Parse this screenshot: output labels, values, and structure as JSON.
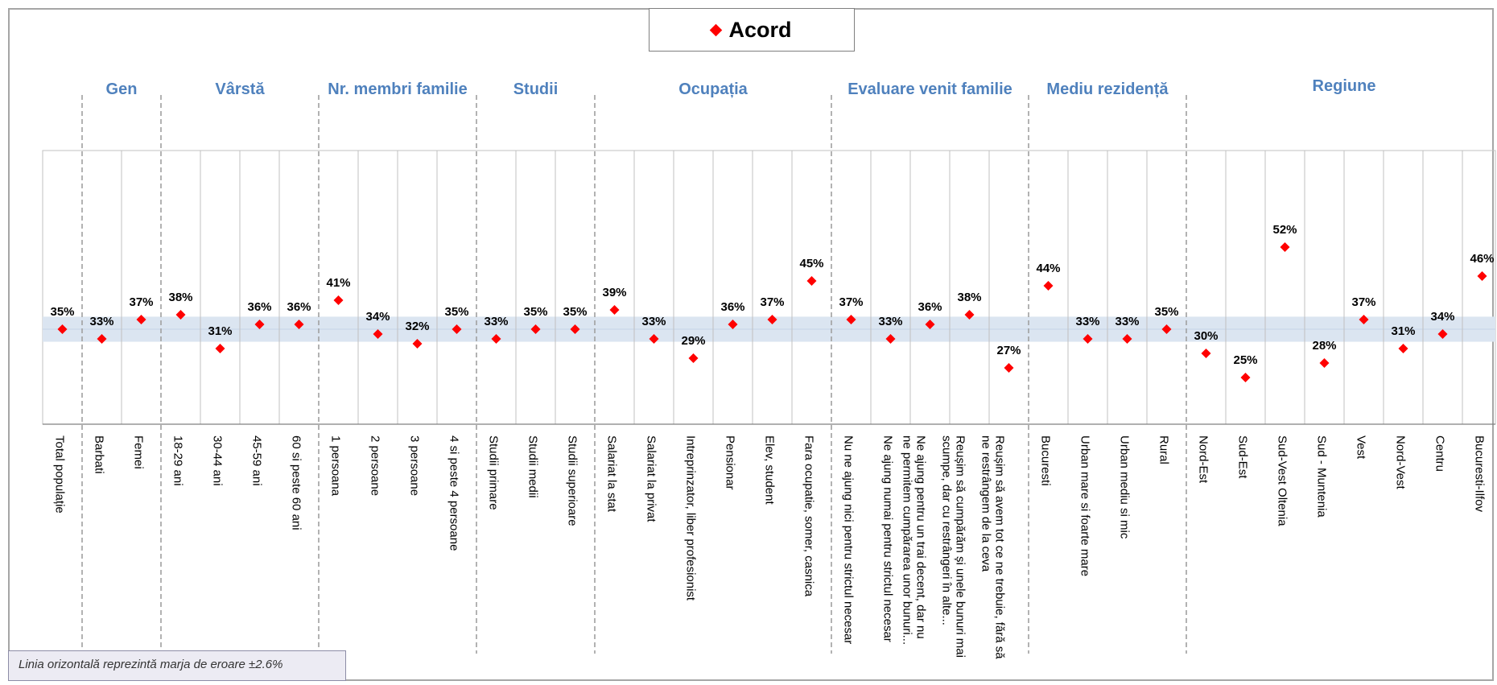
{
  "chart_data": {
    "type": "scatter",
    "legend": {
      "label": "Acord",
      "color": "#ff0000",
      "position": "top-center"
    },
    "note": "Linia orizontală reprezintă marja de eroare ±2.6%",
    "band": {
      "center": 35,
      "margin": 2.6
    },
    "groups": [
      {
        "label": "",
        "start": 0,
        "end": 0
      },
      {
        "label": "Gen",
        "start": 1,
        "end": 2
      },
      {
        "label": "Vârstă",
        "start": 3,
        "end": 6
      },
      {
        "label": "Nr. membri  familie",
        "start": 7,
        "end": 10
      },
      {
        "label": "Studii",
        "start": 11,
        "end": 13
      },
      {
        "label": "Ocupația",
        "start": 14,
        "end": 19
      },
      {
        "label": "Evaluare venit familie",
        "start": 20,
        "end": 24
      },
      {
        "label": "Mediu rezidență",
        "start": 25,
        "end": 28
      },
      {
        "label": "Regiune",
        "start": 29,
        "end": 36
      }
    ],
    "categories": [
      [
        "Total populație"
      ],
      [
        "Barbati"
      ],
      [
        "Femei"
      ],
      [
        "18-29 ani"
      ],
      [
        "30-44 ani"
      ],
      [
        "45-59 ani"
      ],
      [
        "60 si peste 60 ani"
      ],
      [
        "1 persoana"
      ],
      [
        "2 persoane"
      ],
      [
        "3 persoane"
      ],
      [
        "4 si peste 4 persoane"
      ],
      [
        "Studii primare"
      ],
      [
        "Studii medii"
      ],
      [
        "Studii superioare"
      ],
      [
        "Salariat la stat"
      ],
      [
        "Salariat la privat"
      ],
      [
        "Intreprinzator, liber profesionist"
      ],
      [
        "Pensionar"
      ],
      [
        "Elev, student"
      ],
      [
        "Fara ocupatie, somer, casnica"
      ],
      [
        "Nu ne ajung nici pentru strictul necesar"
      ],
      [
        "Ne ajung numai pentru strictul necesar"
      ],
      [
        "Ne ajung pentru un trai decent, dar nu",
        "ne permitem cumpărarea unor bunuri..."
      ],
      [
        "Reușim să cumpărăm și unele bunuri mai",
        "scumpe, dar cu restrângeri în alte..."
      ],
      [
        "Reușim să avem tot ce ne trebuie, fără să",
        "ne restrângem de la ceva"
      ],
      [
        "Bucuresti"
      ],
      [
        "Urban mare si foarte mare"
      ],
      [
        "Urban mediu si mic"
      ],
      [
        "Rural"
      ],
      [
        "Nord-Est"
      ],
      [
        "Sud-Est"
      ],
      [
        "Sud-Vest Oltenia"
      ],
      [
        "Sud - Muntenia"
      ],
      [
        "Vest"
      ],
      [
        "Nord-Vest"
      ],
      [
        "Centru"
      ],
      [
        "Bucuresti-Ilfov"
      ]
    ],
    "series": [
      {
        "name": "Acord",
        "color": "#ff0000",
        "values": [
          35,
          33,
          37,
          38,
          31,
          36,
          36,
          41,
          34,
          32,
          35,
          33,
          35,
          35,
          39,
          33,
          29,
          36,
          37,
          45,
          37,
          33,
          36,
          38,
          27,
          44,
          33,
          33,
          35,
          30,
          25,
          52,
          28,
          37,
          31,
          34,
          46
        ]
      }
    ],
    "value_labels": [
      "35%",
      "33%",
      "37%",
      "38%",
      "31%",
      "36%",
      "36%",
      "41%",
      "34%",
      "32%",
      "35%",
      "33%",
      "35%",
      "35%",
      "39%",
      "33%",
      "29%",
      "36%",
      "37%",
      "45%",
      "37%",
      "33%",
      "36%",
      "38%",
      "27%",
      "44%",
      "33%",
      "33%",
      "35%",
      "30%",
      "25%",
      "52%",
      "28%",
      "37%",
      "31%",
      "34%",
      "46%"
    ],
    "colors": {
      "group_title": "#4f81bd",
      "band": "#dbe5f1",
      "gridline": "#c0c0c0",
      "separator": "#a0a0a0"
    }
  }
}
